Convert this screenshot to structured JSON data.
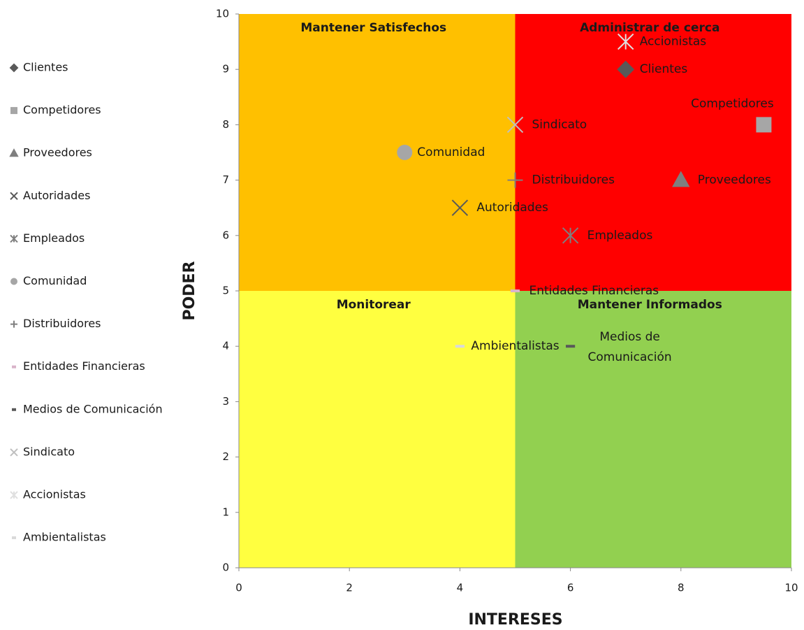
{
  "chart_data": {
    "type": "scatter",
    "xlabel": "INTERESES",
    "ylabel": "PODER",
    "xlim": [
      0,
      10
    ],
    "xticks": [
      0,
      2,
      4,
      6,
      8,
      10
    ],
    "ylim": [
      0,
      10
    ],
    "yticks": [
      0,
      1,
      2,
      3,
      4,
      5,
      6,
      7,
      8,
      9,
      10
    ],
    "split": {
      "x": 5,
      "y": 5
    },
    "quadrants": [
      {
        "name": "Mantener Satisfechos",
        "color": "#ffc000",
        "side": "top-left"
      },
      {
        "name": "Administrar de cerca",
        "color": "#ff0000",
        "side": "top-right"
      },
      {
        "name": "Monitorear",
        "color": "#ffff40",
        "side": "bottom-left"
      },
      {
        "name": "Mantener Informados",
        "color": "#92d050",
        "side": "bottom-right"
      }
    ],
    "legend": "left",
    "series": [
      {
        "name": "Clientes",
        "marker": "diamond",
        "color": "#595959",
        "x": [
          7
        ],
        "values": [
          9
        ]
      },
      {
        "name": "Competidores",
        "marker": "square",
        "color": "#a6a6a6",
        "x": [
          9.5
        ],
        "values": [
          8
        ]
      },
      {
        "name": "Proveedores",
        "marker": "triangle",
        "color": "#7f7f7f",
        "x": [
          8
        ],
        "values": [
          7
        ]
      },
      {
        "name": "Autoridades",
        "marker": "x",
        "color": "#595959",
        "x": [
          4
        ],
        "values": [
          6.5
        ]
      },
      {
        "name": "Empleados",
        "marker": "star",
        "color": "#7f7f7f",
        "x": [
          6
        ],
        "values": [
          6
        ]
      },
      {
        "name": "Comunidad",
        "marker": "circle",
        "color": "#a6a6a6",
        "x": [
          3
        ],
        "values": [
          7.5
        ]
      },
      {
        "name": "Distribuidores",
        "marker": "plus",
        "color": "#7f7f7f",
        "x": [
          5
        ],
        "values": [
          7
        ]
      },
      {
        "name": "Entidades Financieras",
        "marker": "dash",
        "color": "#d9b3c9",
        "x": [
          5
        ],
        "values": [
          5
        ]
      },
      {
        "name": "Medios de Comunicación",
        "marker": "dash",
        "color": "#595959",
        "x": [
          6
        ],
        "values": [
          4
        ]
      },
      {
        "name": "Sindicato",
        "marker": "x",
        "color": "#bfbfbf",
        "x": [
          5
        ],
        "values": [
          8
        ]
      },
      {
        "name": "Accionistas",
        "marker": "star",
        "color": "#e0e0e0",
        "x": [
          7
        ],
        "values": [
          9.5
        ]
      },
      {
        "name": "Ambientalistas",
        "marker": "dash",
        "color": "#d9d9d9",
        "x": [
          4
        ],
        "values": [
          4
        ]
      }
    ]
  }
}
